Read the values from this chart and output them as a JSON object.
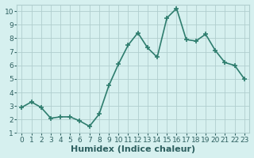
{
  "x": [
    0,
    1,
    2,
    3,
    4,
    5,
    6,
    7,
    8,
    9,
    10,
    11,
    12,
    13,
    14,
    15,
    16,
    17,
    18,
    19,
    20,
    21,
    22,
    23
  ],
  "y": [
    2.9,
    3.3,
    2.9,
    2.1,
    2.2,
    2.2,
    1.9,
    1.5,
    2.4,
    4.5,
    6.1,
    7.5,
    8.4,
    7.3,
    6.6,
    9.5,
    10.2,
    7.9,
    7.8,
    8.3,
    7.1,
    6.2,
    6.0,
    5.0
  ],
  "xlabel": "Humidex (Indice chaleur)",
  "xlim": [
    -0.5,
    23.5
  ],
  "ylim": [
    1,
    10.5
  ],
  "yticks": [
    1,
    2,
    3,
    4,
    5,
    6,
    7,
    8,
    9,
    10
  ],
  "xticks": [
    0,
    1,
    2,
    3,
    4,
    5,
    6,
    7,
    8,
    9,
    10,
    11,
    12,
    13,
    14,
    15,
    16,
    17,
    18,
    19,
    20,
    21,
    22,
    23
  ],
  "line_color": "#2e7d6e",
  "marker": "+",
  "bg_color": "#d6f0ef",
  "grid_color": "#b0cece",
  "font_color": "#2e6060",
  "xlabel_fontsize": 8,
  "tick_fontsize": 6.5,
  "linewidth": 1.2,
  "markersize": 5,
  "markeredgewidth": 1.2
}
